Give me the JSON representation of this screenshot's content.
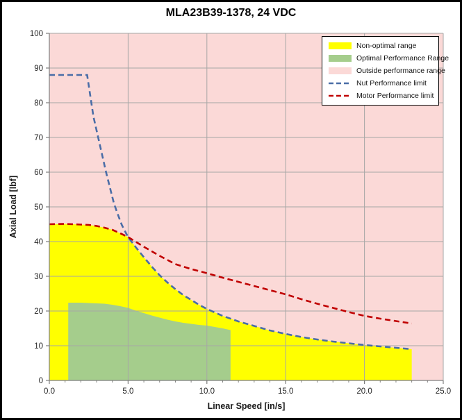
{
  "title": "MLA23B39-1378, 24 VDC",
  "legend": {
    "items": [
      {
        "label": "Non-optimal range",
        "swatch": "area",
        "color": "#FFFF00"
      },
      {
        "label": "Optimal Performance Range",
        "swatch": "area",
        "color": "#A5CD8C"
      },
      {
        "label": "Outside performance range",
        "swatch": "area",
        "color": "#FBD9D7"
      },
      {
        "label": "Nut Performance limit",
        "swatch": "dashed-line",
        "color": "#4A6DA7"
      },
      {
        "label": "Motor Performance limit",
        "swatch": "dashed-line",
        "color": "#C00000"
      }
    ]
  },
  "chart_data": {
    "type": "area",
    "title": "MLA23B39-1378, 24 VDC",
    "xlabel": "Linear Speed [in/s]",
    "ylabel": "Axial Load [lbf]",
    "xlim": [
      0,
      25
    ],
    "ylim": [
      0,
      100
    ],
    "x_tick_values": [
      0,
      5,
      10,
      15,
      20,
      25
    ],
    "x_tick_labels": [
      "0.0",
      "5.0",
      "10.0",
      "15.0",
      "20.0",
      "25.0"
    ],
    "x_minor_step": 1,
    "y_tick_values": [
      0,
      10,
      20,
      30,
      40,
      50,
      60,
      70,
      80,
      90,
      100
    ],
    "y_tick_labels": [
      "0",
      "10",
      "20",
      "30",
      "40",
      "50",
      "60",
      "70",
      "80",
      "90",
      "100"
    ],
    "grid": true,
    "grid_color": "#A6A6A6",
    "axis_color": "#7F7F7F",
    "text_color": "#262626",
    "legend_position": "top-right",
    "series": [
      {
        "name": "Outside performance range",
        "kind": "background",
        "color": "#FBD9D7"
      },
      {
        "name": "Non-optimal range",
        "kind": "area",
        "color": "#FFFF00",
        "base_y": 0,
        "points": [
          [
            0,
            45
          ],
          [
            1,
            45.1
          ],
          [
            2,
            44.9
          ],
          [
            2.5,
            44.8
          ],
          [
            3,
            44.5
          ],
          [
            3.5,
            44
          ],
          [
            4,
            43.4
          ],
          [
            4.5,
            42.4
          ],
          [
            5,
            41.3
          ],
          [
            5.5,
            38.3
          ],
          [
            6,
            35.5
          ],
          [
            6.5,
            32.8
          ],
          [
            7,
            30.3
          ],
          [
            7.5,
            28.2
          ],
          [
            8,
            26.3
          ],
          [
            8.5,
            24.6
          ],
          [
            9,
            23.2
          ],
          [
            9.5,
            21.8
          ],
          [
            10,
            20.6
          ],
          [
            10.5,
            19.6
          ],
          [
            11,
            18.6
          ],
          [
            11.5,
            17.8
          ],
          [
            12,
            17
          ],
          [
            13,
            15.7
          ],
          [
            14,
            14.4
          ],
          [
            15,
            13.4
          ],
          [
            16,
            12.5
          ],
          [
            17,
            11.8
          ],
          [
            18,
            11.2
          ],
          [
            19,
            10.7
          ],
          [
            20,
            10.2
          ],
          [
            21,
            9.8
          ],
          [
            22,
            9.4
          ],
          [
            23,
            9
          ]
        ]
      },
      {
        "name": "Optimal Performance Range",
        "kind": "area",
        "color": "#A5CD8C",
        "base_y": 0,
        "points": [
          [
            1.2,
            22.4
          ],
          [
            2,
            22.4
          ],
          [
            3,
            22.2
          ],
          [
            3.5,
            22.1
          ],
          [
            4,
            21.8
          ],
          [
            4.5,
            21.4
          ],
          [
            5,
            20.9
          ],
          [
            5.5,
            20.1
          ],
          [
            6,
            19.4
          ],
          [
            6.5,
            18.7
          ],
          [
            7,
            18.1
          ],
          [
            7.5,
            17.5
          ],
          [
            8,
            17
          ],
          [
            8.5,
            16.6
          ],
          [
            9,
            16.3
          ],
          [
            9.5,
            16
          ],
          [
            10,
            15.8
          ],
          [
            10.5,
            15.4
          ],
          [
            11,
            15
          ],
          [
            11.5,
            14.5
          ]
        ]
      },
      {
        "name": "Nut Performance limit",
        "kind": "dashed-line",
        "color": "#4A6DA7",
        "points": [
          [
            0,
            88
          ],
          [
            2.4,
            88
          ],
          [
            2.6,
            82
          ],
          [
            2.8,
            76
          ],
          [
            3.1,
            70
          ],
          [
            3.35,
            65
          ],
          [
            3.6,
            60
          ],
          [
            3.85,
            55.5
          ],
          [
            4.1,
            51
          ],
          [
            4.35,
            47.8
          ],
          [
            4.6,
            44.8
          ],
          [
            4.8,
            43
          ],
          [
            5,
            41.3
          ],
          [
            5.5,
            38.3
          ],
          [
            6,
            35.5
          ],
          [
            6.5,
            32.8
          ],
          [
            7,
            30.3
          ],
          [
            7.5,
            28.2
          ],
          [
            8,
            26.3
          ],
          [
            8.5,
            24.6
          ],
          [
            9,
            23.2
          ],
          [
            9.5,
            21.8
          ],
          [
            10,
            20.6
          ],
          [
            10.5,
            19.6
          ],
          [
            11,
            18.6
          ],
          [
            11.5,
            17.8
          ],
          [
            12,
            17
          ],
          [
            13,
            15.7
          ],
          [
            14,
            14.4
          ],
          [
            15,
            13.4
          ],
          [
            16,
            12.5
          ],
          [
            17,
            11.8
          ],
          [
            18,
            11.2
          ],
          [
            19,
            10.7
          ],
          [
            20,
            10.2
          ],
          [
            21,
            9.8
          ],
          [
            22,
            9.4
          ],
          [
            23,
            9
          ]
        ]
      },
      {
        "name": "Motor Performance limit",
        "kind": "dashed-line",
        "color": "#C00000",
        "points": [
          [
            0,
            45
          ],
          [
            1,
            45.1
          ],
          [
            2,
            44.9
          ],
          [
            2.5,
            44.8
          ],
          [
            3,
            44.5
          ],
          [
            3.5,
            44
          ],
          [
            4,
            43.4
          ],
          [
            4.5,
            42.4
          ],
          [
            5,
            41.3
          ],
          [
            5.5,
            39.9
          ],
          [
            6,
            38.5
          ],
          [
            6.5,
            37.2
          ],
          [
            7,
            35.9
          ],
          [
            7.5,
            34.7
          ],
          [
            8,
            33.5
          ],
          [
            8.5,
            32.8
          ],
          [
            9,
            32.1
          ],
          [
            9.5,
            31.5
          ],
          [
            10,
            30.9
          ],
          [
            11,
            29.6
          ],
          [
            12,
            28.4
          ],
          [
            13,
            27.2
          ],
          [
            14,
            26
          ],
          [
            15,
            24.8
          ],
          [
            16,
            23.4
          ],
          [
            17,
            22.1
          ],
          [
            18,
            20.9
          ],
          [
            19,
            19.7
          ],
          [
            20,
            18.6
          ],
          [
            21,
            17.8
          ],
          [
            22,
            17.1
          ],
          [
            23,
            16.4
          ]
        ]
      }
    ]
  }
}
